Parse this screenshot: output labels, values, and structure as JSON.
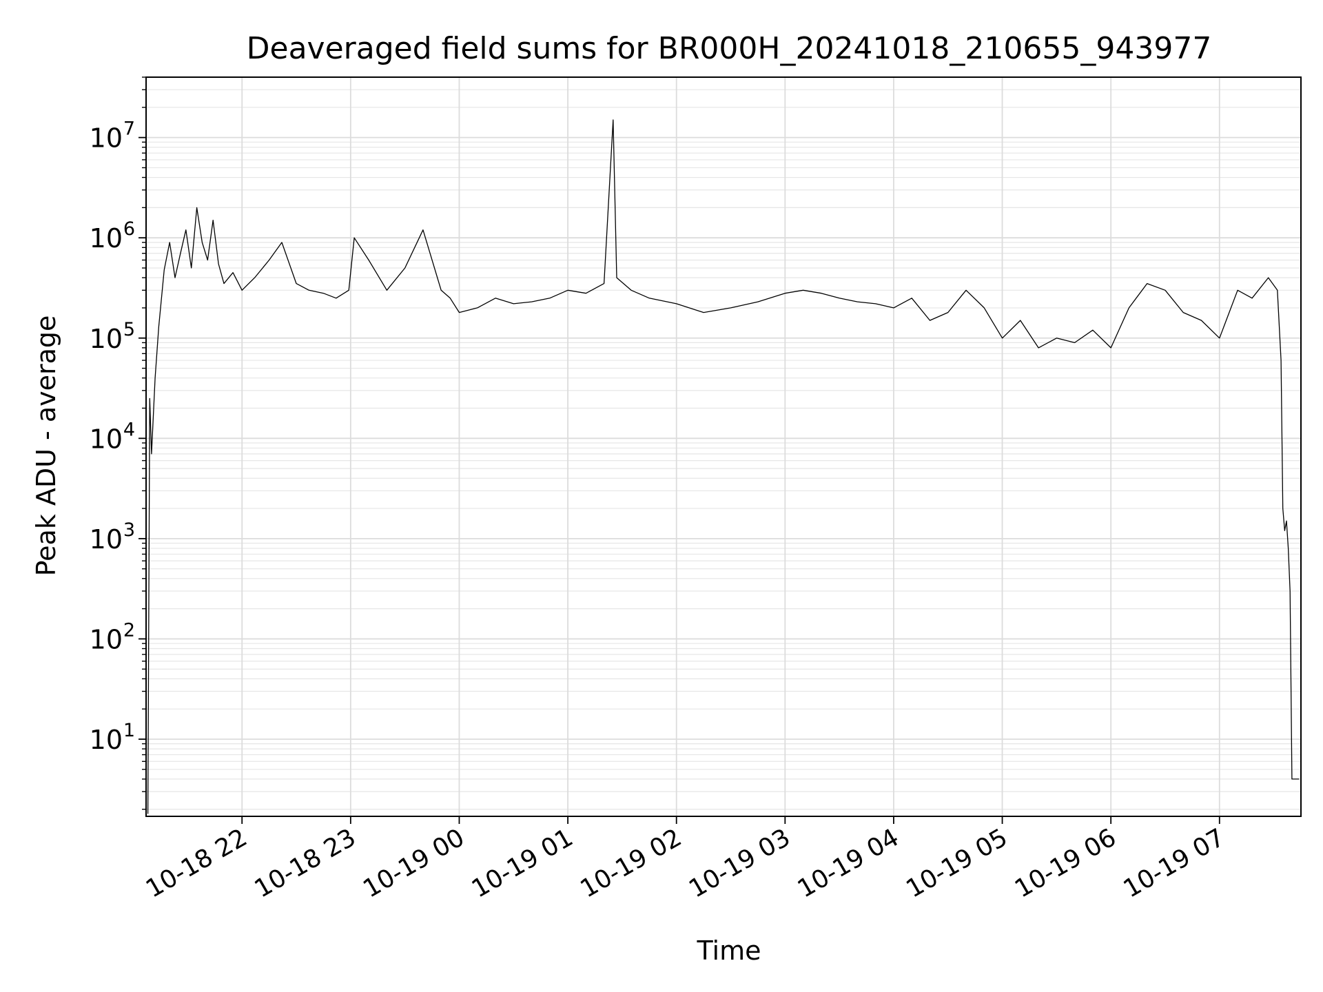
{
  "chart_data": {
    "type": "line",
    "title": "Deaveraged field sums for BR000H_20241018_210655_943977",
    "xlabel": "Time",
    "ylabel": "Peak ADU - average",
    "yscale": "log",
    "ylim": [
      1.7,
      40000000
    ],
    "xlim": [
      "2024-10-18 21:07",
      "2024-10-19 07:45"
    ],
    "grid": "major and minor, light gray",
    "line_color": "#000000",
    "x_ticks": [
      {
        "label": "10-18 22",
        "time": "2024-10-18 22:00"
      },
      {
        "label": "10-18 23",
        "time": "2024-10-18 23:00"
      },
      {
        "label": "10-19 00",
        "time": "2024-10-19 00:00"
      },
      {
        "label": "10-19 01",
        "time": "2024-10-19 01:00"
      },
      {
        "label": "10-19 02",
        "time": "2024-10-19 02:00"
      },
      {
        "label": "10-19 03",
        "time": "2024-10-19 03:00"
      },
      {
        "label": "10-19 04",
        "time": "2024-10-19 04:00"
      },
      {
        "label": "10-19 05",
        "time": "2024-10-19 05:00"
      },
      {
        "label": "10-19 06",
        "time": "2024-10-19 06:00"
      },
      {
        "label": "10-19 07",
        "time": "2024-10-19 07:00"
      }
    ],
    "y_ticks": [
      {
        "base": "10",
        "exp": "1",
        "value": 10
      },
      {
        "base": "10",
        "exp": "2",
        "value": 100
      },
      {
        "base": "10",
        "exp": "3",
        "value": 1000
      },
      {
        "base": "10",
        "exp": "4",
        "value": 10000
      },
      {
        "base": "10",
        "exp": "5",
        "value": 100000
      },
      {
        "base": "10",
        "exp": "6",
        "value": 1000000
      },
      {
        "base": "10",
        "exp": "7",
        "value": 10000000
      }
    ],
    "series": [
      {
        "x": [
          "2024-10-18 21:08",
          "2024-10-18 21:09",
          "2024-10-18 21:10",
          "2024-10-18 21:12",
          "2024-10-18 21:14",
          "2024-10-18 21:17",
          "2024-10-18 21:20",
          "2024-10-18 21:23",
          "2024-10-18 21:26",
          "2024-10-18 21:29",
          "2024-10-18 21:32",
          "2024-10-18 21:35",
          "2024-10-18 21:38",
          "2024-10-18 21:41",
          "2024-10-18 21:44",
          "2024-10-18 21:47",
          "2024-10-18 21:50",
          "2024-10-18 21:55",
          "2024-10-18 22:00",
          "2024-10-18 22:07",
          "2024-10-18 22:15",
          "2024-10-18 22:22",
          "2024-10-18 22:30",
          "2024-10-18 22:37",
          "2024-10-18 22:45",
          "2024-10-18 22:52",
          "2024-10-18 22:59",
          "2024-10-18 23:02",
          "2024-10-18 23:10",
          "2024-10-18 23:20",
          "2024-10-18 23:30",
          "2024-10-18 23:40",
          "2024-10-18 23:50",
          "2024-10-18 23:55",
          "2024-10-19 00:00",
          "2024-10-19 00:10",
          "2024-10-19 00:20",
          "2024-10-19 00:30",
          "2024-10-19 00:40",
          "2024-10-19 00:50",
          "2024-10-19 01:00",
          "2024-10-19 01:10",
          "2024-10-19 01:20",
          "2024-10-19 01:25",
          "2024-10-19 01:27",
          "2024-10-19 01:35",
          "2024-10-19 01:45",
          "2024-10-19 02:00",
          "2024-10-19 02:15",
          "2024-10-19 02:30",
          "2024-10-19 02:45",
          "2024-10-19 03:00",
          "2024-10-19 03:10",
          "2024-10-19 03:20",
          "2024-10-19 03:30",
          "2024-10-19 03:40",
          "2024-10-19 03:50",
          "2024-10-19 04:00",
          "2024-10-19 04:10",
          "2024-10-19 04:20",
          "2024-10-19 04:30",
          "2024-10-19 04:40",
          "2024-10-19 04:50",
          "2024-10-19 05:00",
          "2024-10-19 05:10",
          "2024-10-19 05:20",
          "2024-10-19 05:30",
          "2024-10-19 05:40",
          "2024-10-19 05:50",
          "2024-10-19 06:00",
          "2024-10-19 06:10",
          "2024-10-19 06:20",
          "2024-10-19 06:30",
          "2024-10-19 06:40",
          "2024-10-19 06:50",
          "2024-10-19 07:00",
          "2024-10-19 07:10",
          "2024-10-19 07:18",
          "2024-10-19 07:27",
          "2024-10-19 07:32",
          "2024-10-19 07:34",
          "2024-10-19 07:35",
          "2024-10-19 07:36",
          "2024-10-19 07:37",
          "2024-10-19 07:38",
          "2024-10-19 07:39",
          "2024-10-19 07:40",
          "2024-10-19 07:41",
          "2024-10-19 07:42",
          "2024-10-19 07:43",
          "2024-10-19 07:44"
        ],
        "y": [
          1.8,
          25000,
          7000,
          40000,
          130000,
          480000,
          900000,
          400000,
          700000,
          1200000,
          500000,
          2000000,
          900000,
          600000,
          1500000,
          550000,
          350000,
          450000,
          300000,
          400000,
          600000,
          900000,
          350000,
          300000,
          280000,
          250000,
          300000,
          1000000,
          600000,
          300000,
          500000,
          1200000,
          300000,
          250000,
          180000,
          200000,
          250000,
          220000,
          230000,
          250000,
          300000,
          280000,
          350000,
          15000000,
          400000,
          300000,
          250000,
          220000,
          180000,
          200000,
          230000,
          280000,
          300000,
          280000,
          250000,
          230000,
          220000,
          200000,
          250000,
          150000,
          180000,
          300000,
          200000,
          100000,
          150000,
          80000,
          100000,
          90000,
          120000,
          80000,
          200000,
          350000,
          300000,
          180000,
          150000,
          100000,
          300000,
          250000,
          400000,
          300000,
          60000,
          2000,
          1200,
          1500,
          800,
          300,
          4,
          4,
          4,
          4,
          4
        ]
      }
    ]
  }
}
